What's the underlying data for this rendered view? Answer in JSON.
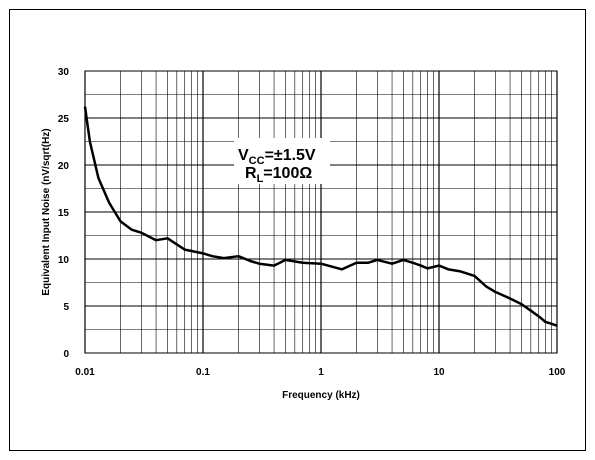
{
  "chart_data": {
    "type": "line",
    "title": "",
    "xlabel": "Frequency (kHz)",
    "ylabel": "Equivalent Input Noise (nV/sqrt(Hz)",
    "x_scale": "log",
    "xlim": [
      0.01,
      100
    ],
    "ylim": [
      0,
      30
    ],
    "x_ticks": [
      "0.01",
      "0.1",
      "1",
      "10",
      "100"
    ],
    "y_ticks": [
      "0",
      "5",
      "10",
      "15",
      "20",
      "25",
      "30"
    ],
    "grid": true,
    "annotation": {
      "line1_main": "V",
      "line1_sub": "CC",
      "line1_rest": "=±1.5V",
      "line2_main": "R",
      "line2_sub": "L",
      "line2_rest": "=100Ω"
    },
    "series": [
      {
        "x": [
          0.01,
          0.011,
          0.013,
          0.016,
          0.02,
          0.025,
          0.03,
          0.04,
          0.05,
          0.07,
          0.1,
          0.12,
          0.15,
          0.2,
          0.25,
          0.3,
          0.4,
          0.5,
          0.7,
          1,
          1.5,
          2,
          2.5,
          3,
          4,
          5,
          6,
          7,
          8,
          10,
          12,
          15,
          20,
          25,
          30,
          40,
          50,
          60,
          70,
          80,
          90,
          100
        ],
        "y": [
          26.2,
          22.5,
          18.6,
          16.0,
          14.0,
          13.1,
          12.8,
          12.0,
          12.2,
          11.0,
          10.6,
          10.3,
          10.1,
          10.3,
          9.8,
          9.5,
          9.3,
          9.9,
          9.6,
          9.5,
          8.9,
          9.6,
          9.6,
          9.9,
          9.5,
          9.9,
          9.6,
          9.3,
          9.0,
          9.3,
          8.9,
          8.7,
          8.2,
          7.1,
          6.5,
          5.8,
          5.2,
          4.5,
          3.9,
          3.3,
          3.1,
          2.9
        ]
      }
    ]
  }
}
